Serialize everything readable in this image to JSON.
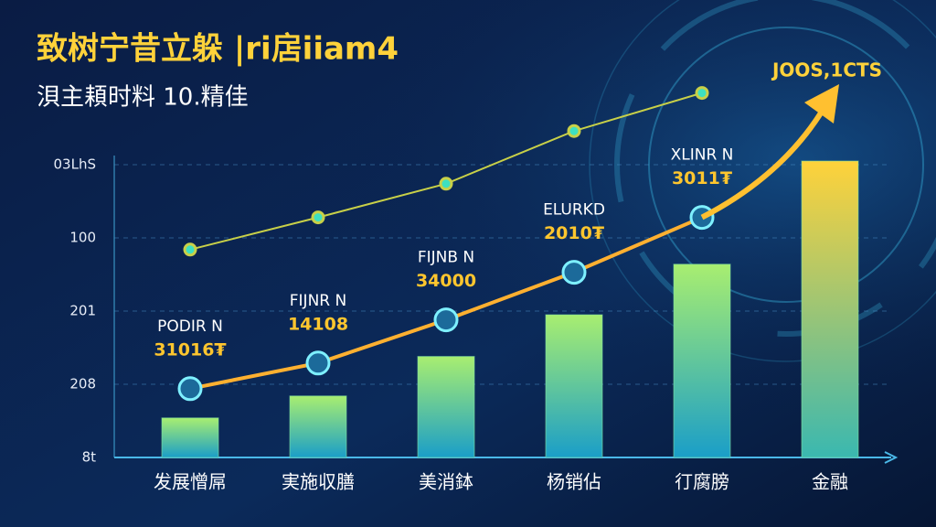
{
  "chart_data": {
    "type": "bar",
    "title": "致树宁昔立躲 |ri扂iiam4",
    "subtitle": "浿主頛时料 10.精佳",
    "top_label": "JOOS,1CTS",
    "categories": [
      "发展憎屌",
      "実施収膳",
      "美消鉢",
      "杨销佔",
      "㣔腐膀",
      "金融"
    ],
    "series": [
      {
        "kind": "bar",
        "color": "#7ee0a0",
        "values": [
          0.54,
          0.84,
          1.38,
          1.95,
          2.64,
          4.05
        ]
      },
      {
        "kind": "line",
        "color": "#c8d048",
        "values": [
          2.84,
          3.28,
          3.74,
          4.46,
          4.98,
          null
        ]
      },
      {
        "kind": "line",
        "color": "#ffb030",
        "values": [
          0.94,
          1.29,
          1.88,
          2.53,
          3.28,
          null
        ]
      }
    ],
    "annotations": [
      {
        "name": "PODIR N",
        "value": "31016₮"
      },
      {
        "name": "FIJNR N",
        "value": "14108"
      },
      {
        "name": "FIJNB N",
        "value": "34000"
      },
      {
        "name": "ELURKD",
        "value": "2010₮"
      },
      {
        "name": "XLINR N",
        "value": "3011₮"
      }
    ],
    "ylim": [
      0,
      5.5
    ],
    "yticks": [
      {
        "value": 0,
        "label": "8t"
      },
      {
        "value": 1,
        "label": "208"
      },
      {
        "value": 2,
        "label": "201"
      },
      {
        "value": 3,
        "label": "100"
      },
      {
        "value": 4,
        "label": "03LhS"
      }
    ],
    "grid": true
  }
}
